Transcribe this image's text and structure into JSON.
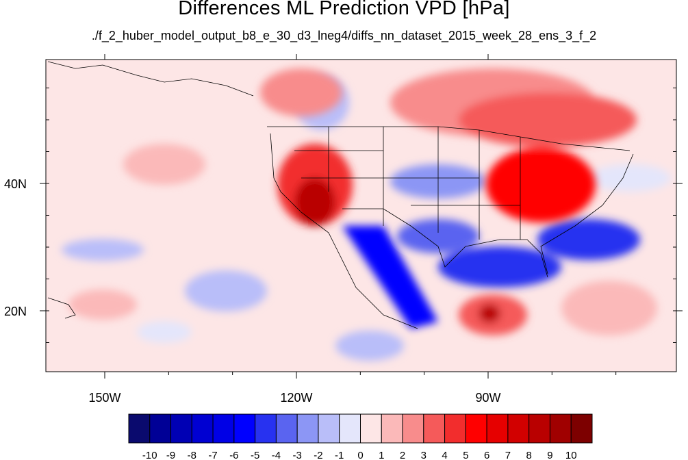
{
  "title": "Differences ML Prediction VPD [hPa]",
  "subtitle": "./f_2_huber_model_output_b8_e_30_d3_lneg4/diffs_nn_dataset_2015_week_28_ens_3_f_2",
  "map": {
    "x_ticks": [
      {
        "label": "150W",
        "lon": -150
      },
      {
        "label": "120W",
        "lon": -120
      },
      {
        "label": "90W",
        "lon": -90
      }
    ],
    "y_ticks": [
      {
        "label": "40N",
        "lat": 40
      },
      {
        "label": "20N",
        "lat": 20
      }
    ]
  },
  "colorbar": {
    "labels": [
      "-10",
      "-9",
      "-8",
      "-7",
      "-6",
      "-5",
      "-4",
      "-3",
      "-2",
      "-1",
      "0",
      "1",
      "2",
      "3",
      "4",
      "5",
      "6",
      "7",
      "8",
      "9",
      "10"
    ],
    "colors": [
      "#0a0a6e",
      "#000096",
      "#0000b4",
      "#0000d2",
      "#0000e6",
      "#0000ff",
      "#2832f0",
      "#5a64f0",
      "#8c96f5",
      "#b9bef9",
      "#e4e6fb",
      "#fde6e6",
      "#fbb9b9",
      "#f88c8c",
      "#f55a5a",
      "#f22d2d",
      "#ff0000",
      "#e60000",
      "#d20000",
      "#b90000",
      "#a00000",
      "#7d0000"
    ]
  }
}
